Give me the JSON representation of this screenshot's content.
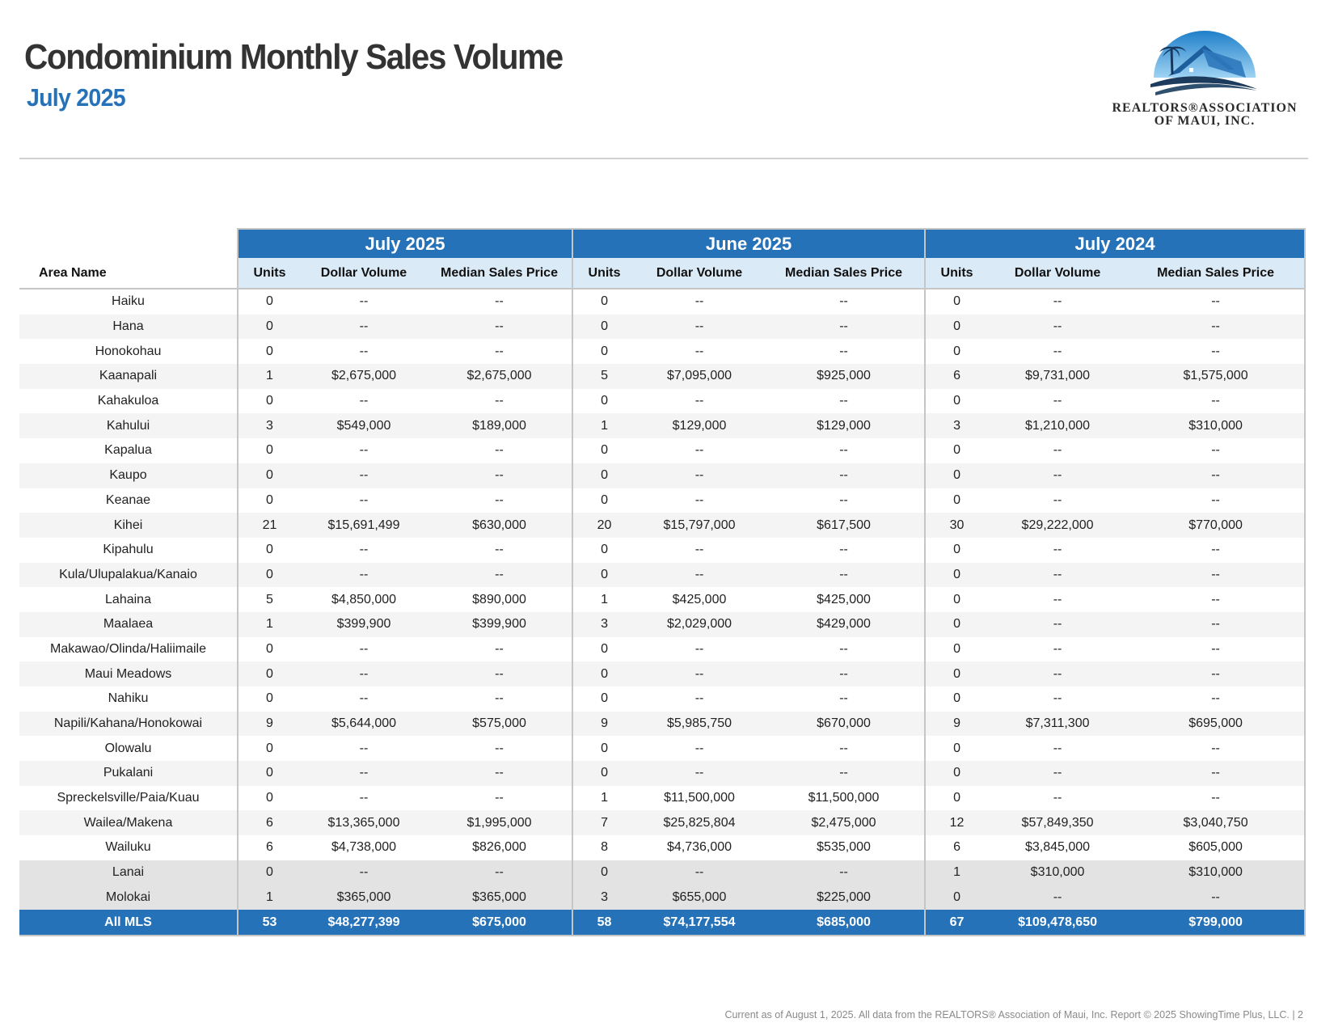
{
  "header": {
    "title": "Condominium Monthly Sales Volume",
    "subtitle": "July 2025",
    "logo_line1": "REALTORS®ASSOCIATION",
    "logo_line2": "OF MAUI, INC."
  },
  "table": {
    "groups": [
      "July 2025",
      "June 2025",
      "July 2024"
    ],
    "area_header": "Area Name",
    "column_headers": [
      "Units",
      "Dollar Volume",
      "Median Sales Price"
    ],
    "rows": [
      {
        "area": "Haiku",
        "cells": [
          "0",
          "--",
          "--",
          "0",
          "--",
          "--",
          "0",
          "--",
          "--"
        ]
      },
      {
        "area": "Hana",
        "cells": [
          "0",
          "--",
          "--",
          "0",
          "--",
          "--",
          "0",
          "--",
          "--"
        ]
      },
      {
        "area": "Honokohau",
        "cells": [
          "0",
          "--",
          "--",
          "0",
          "--",
          "--",
          "0",
          "--",
          "--"
        ]
      },
      {
        "area": "Kaanapali",
        "cells": [
          "1",
          "$2,675,000",
          "$2,675,000",
          "5",
          "$7,095,000",
          "$925,000",
          "6",
          "$9,731,000",
          "$1,575,000"
        ]
      },
      {
        "area": "Kahakuloa",
        "cells": [
          "0",
          "--",
          "--",
          "0",
          "--",
          "--",
          "0",
          "--",
          "--"
        ]
      },
      {
        "area": "Kahului",
        "cells": [
          "3",
          "$549,000",
          "$189,000",
          "1",
          "$129,000",
          "$129,000",
          "3",
          "$1,210,000",
          "$310,000"
        ]
      },
      {
        "area": "Kapalua",
        "cells": [
          "0",
          "--",
          "--",
          "0",
          "--",
          "--",
          "0",
          "--",
          "--"
        ]
      },
      {
        "area": "Kaupo",
        "cells": [
          "0",
          "--",
          "--",
          "0",
          "--",
          "--",
          "0",
          "--",
          "--"
        ]
      },
      {
        "area": "Keanae",
        "cells": [
          "0",
          "--",
          "--",
          "0",
          "--",
          "--",
          "0",
          "--",
          "--"
        ]
      },
      {
        "area": "Kihei",
        "cells": [
          "21",
          "$15,691,499",
          "$630,000",
          "20",
          "$15,797,000",
          "$617,500",
          "30",
          "$29,222,000",
          "$770,000"
        ]
      },
      {
        "area": "Kipahulu",
        "cells": [
          "0",
          "--",
          "--",
          "0",
          "--",
          "--",
          "0",
          "--",
          "--"
        ]
      },
      {
        "area": "Kula/Ulupalakua/Kanaio",
        "cells": [
          "0",
          "--",
          "--",
          "0",
          "--",
          "--",
          "0",
          "--",
          "--"
        ]
      },
      {
        "area": "Lahaina",
        "cells": [
          "5",
          "$4,850,000",
          "$890,000",
          "1",
          "$425,000",
          "$425,000",
          "0",
          "--",
          "--"
        ]
      },
      {
        "area": "Maalaea",
        "cells": [
          "1",
          "$399,900",
          "$399,900",
          "3",
          "$2,029,000",
          "$429,000",
          "0",
          "--",
          "--"
        ]
      },
      {
        "area": "Makawao/Olinda/Haliimaile",
        "cells": [
          "0",
          "--",
          "--",
          "0",
          "--",
          "--",
          "0",
          "--",
          "--"
        ]
      },
      {
        "area": "Maui Meadows",
        "cells": [
          "0",
          "--",
          "--",
          "0",
          "--",
          "--",
          "0",
          "--",
          "--"
        ]
      },
      {
        "area": "Nahiku",
        "cells": [
          "0",
          "--",
          "--",
          "0",
          "--",
          "--",
          "0",
          "--",
          "--"
        ]
      },
      {
        "area": "Napili/Kahana/Honokowai",
        "cells": [
          "9",
          "$5,644,000",
          "$575,000",
          "9",
          "$5,985,750",
          "$670,000",
          "9",
          "$7,311,300",
          "$695,000"
        ]
      },
      {
        "area": "Olowalu",
        "cells": [
          "0",
          "--",
          "--",
          "0",
          "--",
          "--",
          "0",
          "--",
          "--"
        ]
      },
      {
        "area": "Pukalani",
        "cells": [
          "0",
          "--",
          "--",
          "0",
          "--",
          "--",
          "0",
          "--",
          "--"
        ]
      },
      {
        "area": "Spreckelsville/Paia/Kuau",
        "cells": [
          "0",
          "--",
          "--",
          "1",
          "$11,500,000",
          "$11,500,000",
          "0",
          "--",
          "--"
        ]
      },
      {
        "area": "Wailea/Makena",
        "cells": [
          "6",
          "$13,365,000",
          "$1,995,000",
          "7",
          "$25,825,804",
          "$2,475,000",
          "12",
          "$57,849,350",
          "$3,040,750"
        ]
      },
      {
        "area": "Wailuku",
        "cells": [
          "6",
          "$4,738,000",
          "$826,000",
          "8",
          "$4,736,000",
          "$535,000",
          "6",
          "$3,845,000",
          "$605,000"
        ]
      },
      {
        "area": "Lanai",
        "island": true,
        "cells": [
          "0",
          "--",
          "--",
          "0",
          "--",
          "--",
          "1",
          "$310,000",
          "$310,000"
        ]
      },
      {
        "area": "Molokai",
        "island": true,
        "cells": [
          "1",
          "$365,000",
          "$365,000",
          "3",
          "$655,000",
          "$225,000",
          "0",
          "--",
          "--"
        ]
      }
    ],
    "total": {
      "area": "All MLS",
      "cells": [
        "53",
        "$48,277,399",
        "$675,000",
        "58",
        "$74,177,554",
        "$685,000",
        "67",
        "$109,478,650",
        "$799,000"
      ]
    }
  },
  "footer": {
    "text": "Current as of August 1, 2025. All data from the REALTORS® Association of Maui, Inc. Report © 2025 ShowingTime Plus, LLC.  |  2"
  },
  "colors": {
    "accent": "#2672b8",
    "subheader": "#dbeaf7",
    "title": "#333333"
  }
}
